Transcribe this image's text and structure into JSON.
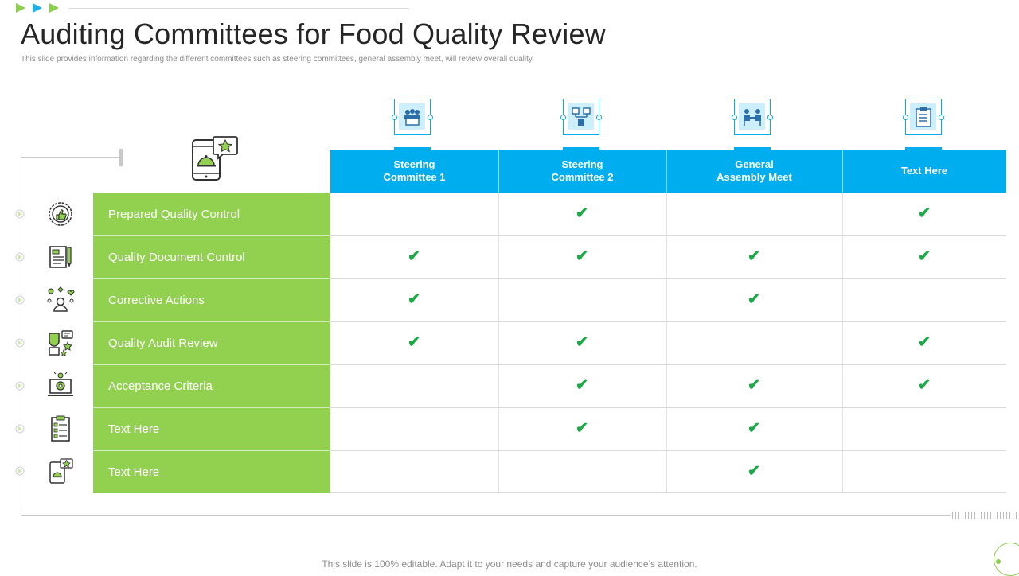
{
  "title": "Auditing Committees for Food Quality Review",
  "subtitle": "This slide provides information regarding the different committees such as steering committees, general assembly meet,  will review overall quality.",
  "footer": "This slide is 100% editable. Adapt it to your needs and capture your audience’s attention.",
  "colors": {
    "header": "#00aeef",
    "row": "#92d050",
    "check": "#1aab46",
    "accent": "#8ccf4d"
  },
  "columns": [
    {
      "label": "Steering\nCommittee 1",
      "icon": "team-meeting-icon"
    },
    {
      "label": "Steering\nCommittee 2",
      "icon": "org-chart-icon"
    },
    {
      "label": "General\nAssembly Meet",
      "icon": "assembly-icon"
    },
    {
      "label": "Text Here",
      "icon": "clipboard-icon"
    }
  ],
  "check_glyph": "✔",
  "rows": [
    {
      "label": "Prepared Quality Control",
      "icon": "quality-badge-icon",
      "checks": [
        false,
        true,
        false,
        true
      ]
    },
    {
      "label": "Quality Document Control",
      "icon": "document-pen-icon",
      "checks": [
        true,
        true,
        true,
        true
      ]
    },
    {
      "label": "Corrective Actions",
      "icon": "person-feedback-icon",
      "checks": [
        true,
        false,
        true,
        false
      ]
    },
    {
      "label": "Quality Audit Review",
      "icon": "review-chat-icon",
      "checks": [
        true,
        true,
        false,
        true
      ]
    },
    {
      "label": "Acceptance Criteria",
      "icon": "laptop-gear-icon",
      "checks": [
        false,
        true,
        true,
        true
      ]
    },
    {
      "label": "Text Here",
      "icon": "checklist-icon",
      "checks": [
        false,
        true,
        true,
        false
      ]
    },
    {
      "label": "Text Here",
      "icon": "mobile-rating-icon",
      "checks": [
        false,
        false,
        true,
        false
      ]
    }
  ],
  "header_illustration": "mobile-food-rating-icon"
}
